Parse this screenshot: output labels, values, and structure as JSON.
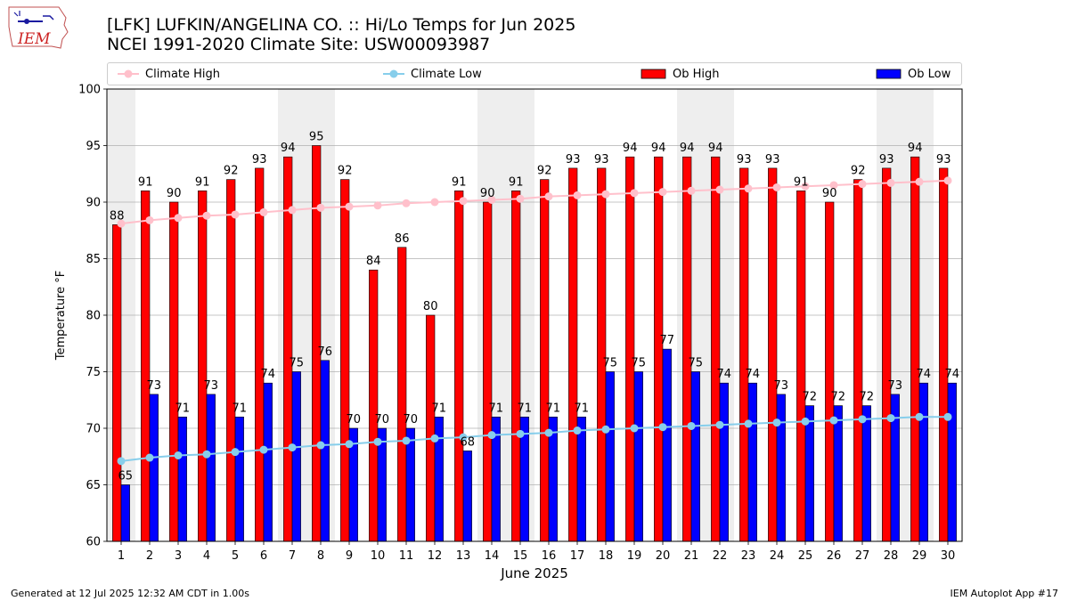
{
  "header": {
    "title_line1": "[LFK] LUFKIN/ANGELINA CO. :: Hi/Lo Temps for Jun 2025",
    "title_line2": "NCEI 1991-2020 Climate Site: USW00093987",
    "logo_text": "IEM"
  },
  "footer": {
    "left": "Generated at 12 Jul 2025 12:32 AM CDT in 1.00s",
    "right": "IEM Autoplot App #17"
  },
  "chart_data": {
    "type": "bar",
    "xlabel": "June 2025",
    "ylabel": "Temperature °F",
    "ylim": [
      60,
      100
    ],
    "yticks": [
      60,
      65,
      70,
      75,
      80,
      85,
      90,
      95,
      100
    ],
    "grid": true,
    "legend_placement": "top",
    "weekend_shading": [
      [
        1,
        1
      ],
      [
        7,
        8
      ],
      [
        14,
        15
      ],
      [
        21,
        22
      ],
      [
        28,
        29
      ]
    ],
    "categories": [
      "1",
      "2",
      "3",
      "4",
      "5",
      "6",
      "7",
      "8",
      "9",
      "10",
      "11",
      "12",
      "13",
      "14",
      "15",
      "16",
      "17",
      "18",
      "19",
      "20",
      "21",
      "22",
      "23",
      "24",
      "25",
      "26",
      "27",
      "28",
      "29",
      "30"
    ],
    "series": [
      {
        "name": "Ob High",
        "kind": "bar",
        "color": "#ff0000",
        "values": [
          88,
          91,
          90,
          91,
          92,
          93,
          94,
          95,
          92,
          84,
          86,
          80,
          91,
          90,
          91,
          92,
          93,
          93,
          94,
          94,
          94,
          94,
          93,
          93,
          91,
          90,
          92,
          93,
          94,
          93
        ]
      },
      {
        "name": "Ob Low",
        "kind": "bar",
        "color": "#0000ff",
        "values": [
          65,
          73,
          71,
          73,
          71,
          74,
          75,
          76,
          70,
          70,
          70,
          71,
          68,
          71,
          71,
          71,
          71,
          75,
          75,
          77,
          75,
          74,
          74,
          73,
          72,
          72,
          72,
          73,
          74,
          74
        ]
      },
      {
        "name": "Climate High",
        "kind": "line",
        "color": "#ffc0cb",
        "values": [
          88.1,
          88.4,
          88.6,
          88.8,
          88.9,
          89.1,
          89.3,
          89.5,
          89.6,
          89.7,
          89.9,
          90.0,
          90.1,
          90.2,
          90.3,
          90.5,
          90.6,
          90.7,
          90.8,
          90.9,
          91.0,
          91.1,
          91.2,
          91.3,
          91.4,
          91.5,
          91.6,
          91.7,
          91.8,
          91.9
        ]
      },
      {
        "name": "Climate Low",
        "kind": "line",
        "color": "#87ceeb",
        "values": [
          67.1,
          67.4,
          67.6,
          67.7,
          67.9,
          68.1,
          68.3,
          68.5,
          68.6,
          68.8,
          68.9,
          69.1,
          69.2,
          69.4,
          69.5,
          69.6,
          69.8,
          69.9,
          70.0,
          70.1,
          70.2,
          70.3,
          70.4,
          70.5,
          70.6,
          70.7,
          70.8,
          70.9,
          71.0,
          71.0
        ]
      }
    ]
  }
}
